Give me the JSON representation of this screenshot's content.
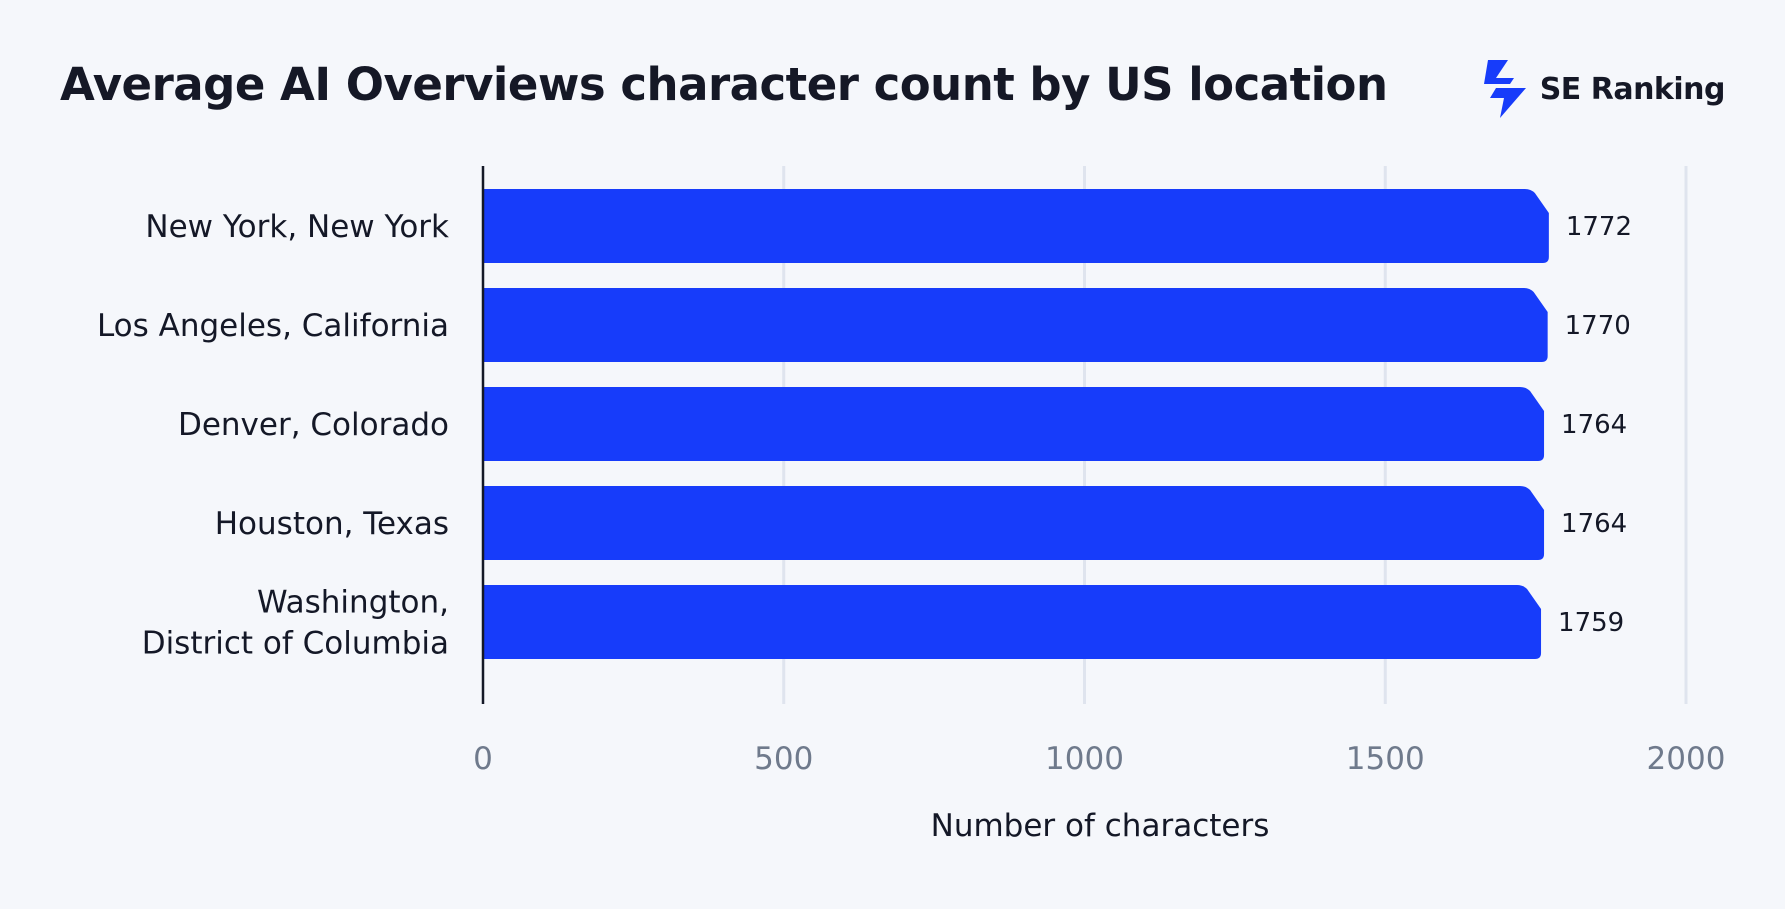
{
  "brand": {
    "name": "SE Ranking",
    "logo_icon": "se-ranking-logo-icon",
    "logo_color": "#173cfa"
  },
  "colors": {
    "bar": "#173cfa",
    "grid": "#dfe4ee",
    "axis": "#141827",
    "tick": "#6f7a8c"
  },
  "chart_data": {
    "type": "bar",
    "orientation": "horizontal",
    "title": "Average AI Overviews character count by US location",
    "xlabel": "Number of characters",
    "ylabel": "",
    "xlim": [
      0,
      2000
    ],
    "xticks": [
      0,
      500,
      1000,
      1500,
      2000
    ],
    "grid": true,
    "categories": [
      [
        "New York, New York"
      ],
      [
        "Los Angeles, California"
      ],
      [
        "Denver, Colorado"
      ],
      [
        "Houston, Texas"
      ],
      [
        "Washington,",
        "District of Columbia"
      ]
    ],
    "values": [
      1772,
      1770,
      1764,
      1764,
      1759
    ]
  }
}
